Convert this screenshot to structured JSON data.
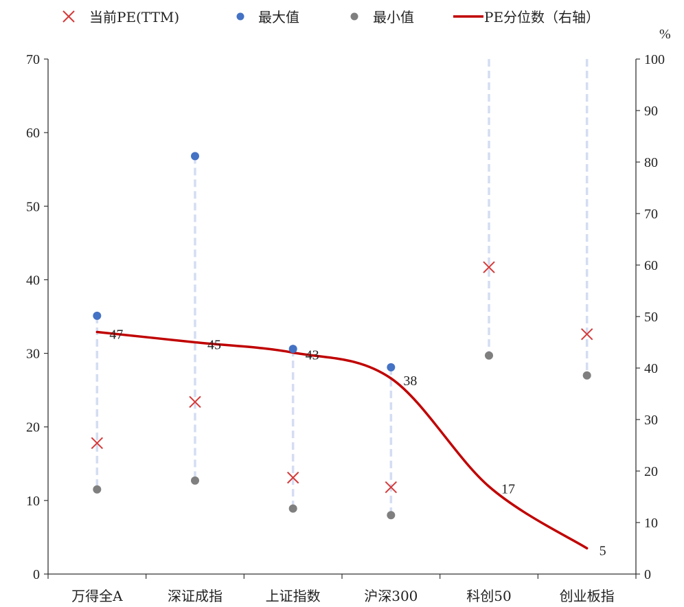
{
  "chart_data": {
    "type": "line",
    "legend": {
      "current_pe": "当前PE(TTM)",
      "max": "最大值",
      "min": "最小值",
      "percentile": "PE分位数（右轴）"
    },
    "categories": [
      "万得全A",
      "深证成指",
      "上证指数",
      "沪深300",
      "科创50",
      "创业板指"
    ],
    "left_axis": {
      "min": 0,
      "max": 70,
      "ticks": [
        0,
        10,
        20,
        30,
        40,
        50,
        60,
        70
      ]
    },
    "right_axis": {
      "unit": "%",
      "min": 0,
      "max": 100,
      "ticks": [
        0,
        10,
        20,
        30,
        40,
        50,
        60,
        70,
        80,
        90,
        100
      ]
    },
    "series": [
      {
        "name": "当前PE(TTM)",
        "marker": "x",
        "color": "#d43a3a",
        "values": [
          17.8,
          23.4,
          13.1,
          11.8,
          41.7,
          32.6
        ]
      },
      {
        "name": "最大值",
        "marker": "dot",
        "color": "#4472c4",
        "values": [
          35.1,
          56.8,
          30.6,
          28.1,
          null,
          null
        ]
      },
      {
        "name": "最小值",
        "marker": "dot",
        "color": "#7f7f7f",
        "values": [
          11.5,
          12.7,
          8.9,
          8.0,
          29.7,
          27.0
        ]
      },
      {
        "name": "PE分位数（右轴）",
        "axis": "right",
        "color": "#c00000",
        "values": [
          47,
          45,
          43,
          38,
          17,
          5
        ],
        "labels": [
          "47",
          "45",
          "43",
          "38",
          "17",
          "5"
        ]
      }
    ],
    "range_line_color": "#d4ddf2"
  }
}
